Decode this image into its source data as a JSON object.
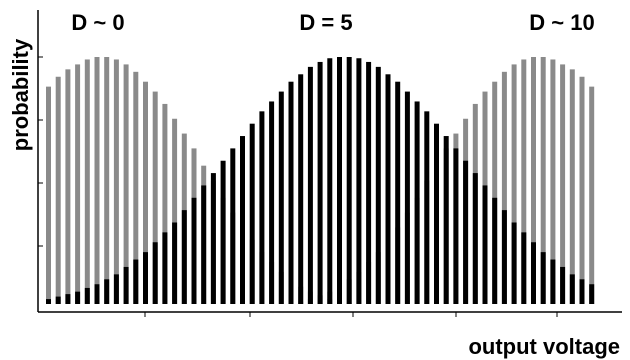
{
  "chart_data": {
    "type": "bar",
    "xlabel": "output voltage",
    "ylabel": "probability",
    "grid": false,
    "legend": "none",
    "colors": {
      "gray_series": "#8a8a8a",
      "black_series": "#000000",
      "axis": "#000000"
    },
    "annotations": [
      {
        "text": "D ~ 0",
        "series": "left"
      },
      {
        "text": "D = 5",
        "series": "middle"
      },
      {
        "text": "D ~ 10",
        "series": "right"
      }
    ],
    "series": [
      {
        "color_key": "gray_series",
        "values": [
          0.88,
          0.92,
          0.95,
          0.97,
          0.99,
          1.0,
          1.0,
          0.99,
          0.97,
          0.94,
          0.9,
          0.86,
          0.81,
          0.75,
          0.69,
          0.63,
          0.56,
          0.5,
          0.43,
          0.37,
          0.31,
          0.26,
          0.21,
          0.17,
          0.13,
          0.1,
          0.07,
          0.05,
          0.035,
          0.02,
          0.01,
          0.005,
          0.0,
          0.0,
          0.0,
          0.0,
          0.0,
          0.0,
          0.0,
          0.0,
          0.0,
          0.0,
          0.0,
          0.0,
          0.0,
          0.0,
          0.0,
          0.0,
          0.0,
          0.0,
          0.0,
          0.0,
          0.0,
          0.0,
          0.0,
          0.0,
          0.0
        ]
      },
      {
        "color_key": "gray_series",
        "values": [
          0.0,
          0.0,
          0.0,
          0.0,
          0.0,
          0.0,
          0.0,
          0.0,
          0.0,
          0.0,
          0.0,
          0.0,
          0.0,
          0.0,
          0.0,
          0.0,
          0.0,
          0.0,
          0.0,
          0.0,
          0.0,
          0.0,
          0.0,
          0.0,
          0.0,
          0.005,
          0.01,
          0.02,
          0.035,
          0.05,
          0.07,
          0.1,
          0.13,
          0.17,
          0.21,
          0.26,
          0.31,
          0.37,
          0.43,
          0.5,
          0.56,
          0.63,
          0.69,
          0.75,
          0.81,
          0.86,
          0.9,
          0.94,
          0.97,
          0.99,
          1.0,
          1.0,
          0.99,
          0.97,
          0.95,
          0.92,
          0.88
        ]
      },
      {
        "color_key": "black_series",
        "values": [
          0.02,
          0.03,
          0.04,
          0.05,
          0.065,
          0.08,
          0.1,
          0.12,
          0.15,
          0.18,
          0.21,
          0.25,
          0.29,
          0.33,
          0.38,
          0.43,
          0.48,
          0.53,
          0.58,
          0.63,
          0.68,
          0.73,
          0.78,
          0.82,
          0.86,
          0.9,
          0.93,
          0.96,
          0.98,
          0.995,
          1.0,
          1.0,
          0.995,
          0.98,
          0.96,
          0.93,
          0.9,
          0.86,
          0.82,
          0.78,
          0.73,
          0.68,
          0.63,
          0.58,
          0.53,
          0.48,
          0.43,
          0.38,
          0.33,
          0.29,
          0.25,
          0.21,
          0.18,
          0.15,
          0.12,
          0.1,
          0.08
        ]
      }
    ]
  }
}
